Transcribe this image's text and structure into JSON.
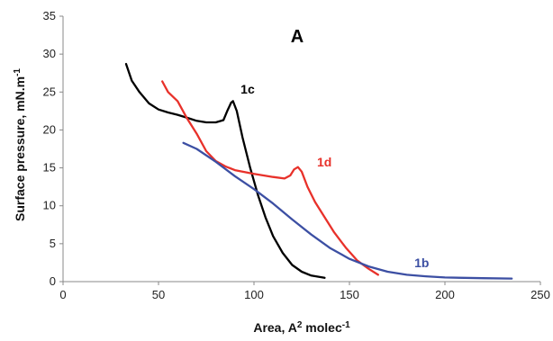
{
  "chart_data": {
    "type": "line",
    "panel_label": "A",
    "xlabel": "Area, A",
    "xlabel_sup": "2",
    "xlabel_rest": " molec",
    "xlabel_sup2": "-1",
    "ylabel": "Surface pressure, mN.m",
    "ylabel_sup": "-1",
    "xlim": [
      0,
      250
    ],
    "ylim": [
      0,
      35
    ],
    "xticks": [
      0,
      50,
      100,
      150,
      200,
      250
    ],
    "yticks": [
      0,
      5,
      10,
      15,
      20,
      25,
      30,
      35
    ],
    "grid": false,
    "legend": "none",
    "series": [
      {
        "name": "1c",
        "color": "#000000",
        "points": [
          [
            33,
            28.7
          ],
          [
            36,
            26.5
          ],
          [
            40,
            25
          ],
          [
            45,
            23.5
          ],
          [
            50,
            22.7
          ],
          [
            55,
            22.3
          ],
          [
            60,
            22
          ],
          [
            65,
            21.6
          ],
          [
            70,
            21.2
          ],
          [
            75,
            21
          ],
          [
            80,
            21
          ],
          [
            84,
            21.3
          ],
          [
            86,
            22.5
          ],
          [
            88,
            23.6
          ],
          [
            89,
            23.8
          ],
          [
            91,
            22.5
          ],
          [
            94,
            19
          ],
          [
            98,
            15
          ],
          [
            102,
            11.5
          ],
          [
            106,
            8.5
          ],
          [
            110,
            6
          ],
          [
            115,
            3.8
          ],
          [
            120,
            2.2
          ],
          [
            125,
            1.3
          ],
          [
            130,
            0.8
          ],
          [
            137,
            0.5
          ]
        ]
      },
      {
        "name": "1d",
        "color": "#e8312a",
        "points": [
          [
            52,
            26.4
          ],
          [
            55,
            25
          ],
          [
            60,
            23.8
          ],
          [
            65,
            21.5
          ],
          [
            70,
            19.5
          ],
          [
            75,
            17.2
          ],
          [
            80,
            15.9
          ],
          [
            85,
            15.2
          ],
          [
            90,
            14.7
          ],
          [
            100,
            14.2
          ],
          [
            110,
            13.8
          ],
          [
            116,
            13.6
          ],
          [
            119,
            14
          ],
          [
            121,
            14.8
          ],
          [
            123,
            15.1
          ],
          [
            125,
            14.5
          ],
          [
            128,
            12.5
          ],
          [
            132,
            10.5
          ],
          [
            137,
            8.5
          ],
          [
            142,
            6.5
          ],
          [
            148,
            4.5
          ],
          [
            154,
            2.8
          ],
          [
            160,
            1.7
          ],
          [
            165,
            0.9
          ]
        ]
      },
      {
        "name": "1b",
        "color": "#3c4fa3",
        "points": [
          [
            63,
            18.3
          ],
          [
            70,
            17.5
          ],
          [
            80,
            15.8
          ],
          [
            90,
            13.9
          ],
          [
            100,
            12.2
          ],
          [
            110,
            10.3
          ],
          [
            120,
            8.2
          ],
          [
            130,
            6.2
          ],
          [
            140,
            4.4
          ],
          [
            150,
            3
          ],
          [
            160,
            2
          ],
          [
            170,
            1.3
          ],
          [
            180,
            0.9
          ],
          [
            190,
            0.7
          ],
          [
            200,
            0.55
          ],
          [
            210,
            0.5
          ],
          [
            220,
            0.45
          ],
          [
            235,
            0.4
          ]
        ]
      }
    ],
    "annotations": [
      {
        "text": "1c",
        "x": 93,
        "y": 24.8
      },
      {
        "text": "1d",
        "x": 133,
        "y": 15.2
      },
      {
        "text": "1b",
        "x": 184,
        "y": 1.9
      }
    ]
  }
}
